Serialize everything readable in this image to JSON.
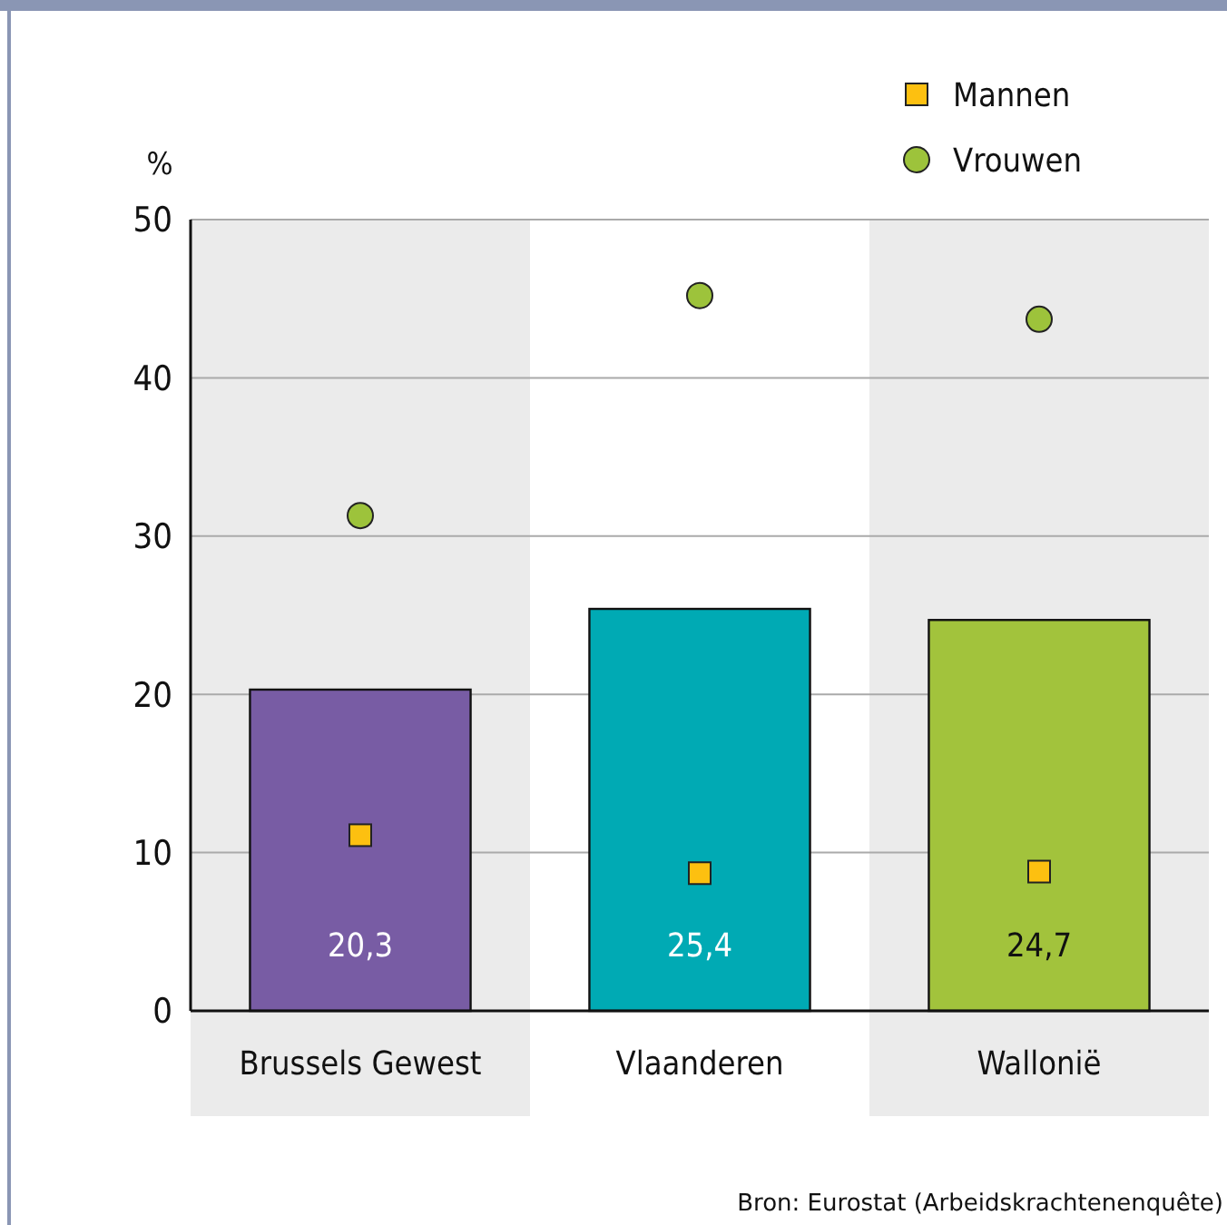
{
  "chart_data": {
    "type": "bar",
    "ylabel": "%",
    "categories": [
      "Brussels Gewest",
      "Vlaanderen",
      "Wallonië"
    ],
    "values": [
      20.3,
      25.4,
      24.7
    ],
    "colors": [
      "#785ca4",
      "#00aab4",
      "#a2c33c"
    ],
    "value_labels": [
      "20,3",
      "25,4",
      "24,7"
    ],
    "series": [
      {
        "name": "Mannen",
        "type": "scatter",
        "marker": "square",
        "color": "#fdc010",
        "values": [
          11.1,
          8.7,
          8.8
        ]
      },
      {
        "name": "Vrouwen",
        "type": "scatter",
        "marker": "circle",
        "color": "#9dc33b",
        "values": [
          31.3,
          45.2,
          43.7
        ]
      }
    ],
    "ylim": [
      0,
      50
    ],
    "yticks": [
      0,
      10,
      20,
      30,
      40,
      50
    ],
    "grid": "y",
    "legend": "top right",
    "annotations": [
      "Bron: Eurostat (Arbeidskrachtenenquête)"
    ]
  }
}
